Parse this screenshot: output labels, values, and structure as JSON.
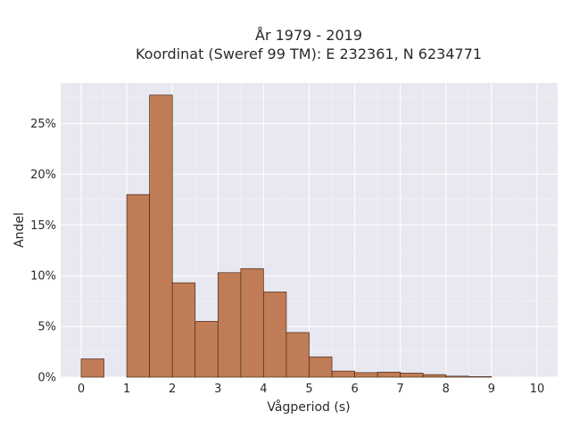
{
  "chart_data": {
    "type": "bar",
    "title_line1": "År 1979 - 2019",
    "title_line2": "Koordinat (Sweref 99 TM): E 232361, N 6234771",
    "xlabel": "Vågperiod (s)",
    "ylabel": "Andel",
    "bin_width": 0.5,
    "bins": [
      {
        "x0": 0.0,
        "value": 1.8
      },
      {
        "x0": 0.5,
        "value": 0.0
      },
      {
        "x0": 1.0,
        "value": 18.0
      },
      {
        "x0": 1.5,
        "value": 27.8
      },
      {
        "x0": 2.0,
        "value": 9.3
      },
      {
        "x0": 2.5,
        "value": 5.5
      },
      {
        "x0": 3.0,
        "value": 10.3
      },
      {
        "x0": 3.5,
        "value": 10.7
      },
      {
        "x0": 4.0,
        "value": 8.4
      },
      {
        "x0": 4.5,
        "value": 4.4
      },
      {
        "x0": 5.0,
        "value": 2.0
      },
      {
        "x0": 5.5,
        "value": 0.6
      },
      {
        "x0": 6.0,
        "value": 0.45
      },
      {
        "x0": 6.5,
        "value": 0.5
      },
      {
        "x0": 7.0,
        "value": 0.4
      },
      {
        "x0": 7.5,
        "value": 0.25
      },
      {
        "x0": 8.0,
        "value": 0.1
      },
      {
        "x0": 8.5,
        "value": 0.05
      }
    ],
    "xlim": [
      -0.45,
      10.45
    ],
    "ylim": [
      0,
      29
    ],
    "x_ticks": [
      0,
      1,
      2,
      3,
      4,
      5,
      6,
      7,
      8,
      9,
      10
    ],
    "y_ticks": [
      0,
      5,
      10,
      15,
      20,
      25
    ],
    "y_tick_suffix": "%",
    "bar_color": "#c07c56",
    "bar_edge_color": "#4a2b1c",
    "plot_bg_color": "#e8e8f0",
    "grid": true
  }
}
